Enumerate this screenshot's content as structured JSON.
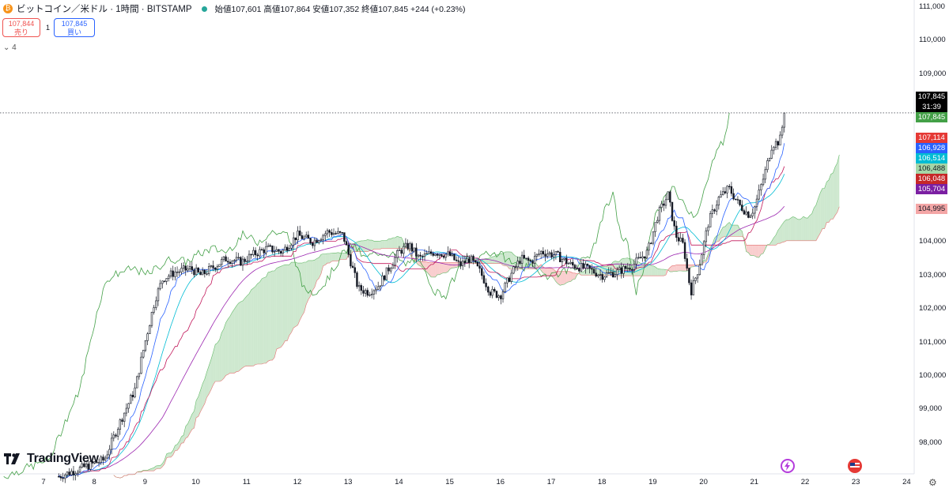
{
  "header": {
    "coin_glyph": "₿",
    "symbol": "ビットコイン／米ドル · 1時間 · BITSTAMP",
    "ohlc": "始値107,601 高値107,864 安値107,352 終値107,845 +244 (+0.23%)",
    "status_color": "#26a69a"
  },
  "trade": {
    "sell_price": "107,844",
    "sell_label": "売り",
    "quantity": "1",
    "buy_price": "107,845",
    "buy_label": "買い"
  },
  "indicators_toggle": "4",
  "brand": "TradingView",
  "colors": {
    "up": "#131722",
    "down": "#131722",
    "kijun": "#c2185b",
    "tenkan": "#2962ff",
    "chikou": "#43a047",
    "cloud_bull": "#a5d6a7",
    "cloud_bear": "#f4a6a6"
  },
  "chart_data": {
    "type": "candlestick",
    "title": "ビットコイン／米ドル · 1時間 · BITSTAMP",
    "x_ticks": [
      "7",
      "8",
      "9",
      "10",
      "11",
      "12",
      "13",
      "14",
      "15",
      "16",
      "17",
      "18",
      "19",
      "20",
      "21",
      "22",
      "23",
      "24"
    ],
    "y_ticks": [
      "111,000",
      "110,000",
      "109,000",
      "104,000",
      "103,000",
      "102,000",
      "101,000",
      "100,000",
      "99,000",
      "98,000"
    ],
    "ylim": [
      97300,
      111250
    ],
    "last_price": 107845,
    "countdown": "31:39",
    "price_tags": [
      {
        "label": "107,845",
        "value": 107845,
        "color": "#000000"
      },
      {
        "label": "107,845",
        "value": 107845,
        "color": "#43a047"
      },
      {
        "label": "107,114",
        "value": 107114,
        "color": "#e53935"
      },
      {
        "label": "106,928",
        "value": 106928,
        "color": "#2962ff"
      },
      {
        "label": "106,514",
        "value": 106514,
        "color": "#00bcd4"
      },
      {
        "label": "106,488",
        "value": 106488,
        "color": "#a5d6a7"
      },
      {
        "label": "106,048",
        "value": 106048,
        "color": "#c62828"
      },
      {
        "label": "105,704",
        "value": 105704,
        "color": "#7b1fa2"
      },
      {
        "label": "104,995",
        "value": 104995,
        "color": "#f4a6a6"
      }
    ],
    "closes_approx": [
      [
        7.3,
        97000
      ],
      [
        8.2,
        97500
      ],
      [
        8.5,
        98600
      ],
      [
        8.8,
        99600
      ],
      [
        9.0,
        101000
      ],
      [
        9.2,
        102300
      ],
      [
        9.35,
        102900
      ],
      [
        9.6,
        103100
      ],
      [
        9.9,
        103200
      ],
      [
        10.1,
        103000
      ],
      [
        10.3,
        103200
      ],
      [
        10.6,
        103500
      ],
      [
        10.9,
        103400
      ],
      [
        11.1,
        103600
      ],
      [
        11.4,
        103800
      ],
      [
        11.7,
        103700
      ],
      [
        12.0,
        104200
      ],
      [
        12.3,
        104000
      ],
      [
        12.6,
        104300
      ],
      [
        12.9,
        104200
      ],
      [
        13.05,
        103400
      ],
      [
        13.2,
        102600
      ],
      [
        13.4,
        102500
      ],
      [
        13.6,
        102700
      ],
      [
        13.8,
        103200
      ],
      [
        14.0,
        103700
      ],
      [
        14.2,
        103900
      ],
      [
        14.4,
        103500
      ],
      [
        14.7,
        103700
      ],
      [
        15.0,
        103600
      ],
      [
        15.2,
        103300
      ],
      [
        15.4,
        103500
      ],
      [
        15.6,
        103100
      ],
      [
        15.8,
        102500
      ],
      [
        16.0,
        102400
      ],
      [
        16.2,
        103000
      ],
      [
        16.4,
        103500
      ],
      [
        16.6,
        103400
      ],
      [
        16.8,
        103700
      ],
      [
        17.1,
        103600
      ],
      [
        17.4,
        103300
      ],
      [
        17.7,
        103200
      ],
      [
        18.0,
        103000
      ],
      [
        18.3,
        103100
      ],
      [
        18.6,
        103300
      ],
      [
        18.9,
        103700
      ],
      [
        19.1,
        104800
      ],
      [
        19.3,
        105400
      ],
      [
        19.45,
        104200
      ],
      [
        19.6,
        103900
      ],
      [
        19.75,
        102500
      ],
      [
        19.9,
        103200
      ],
      [
        20.1,
        104600
      ],
      [
        20.3,
        105300
      ],
      [
        20.5,
        105600
      ],
      [
        20.7,
        105100
      ],
      [
        20.9,
        104800
      ],
      [
        21.0,
        105000
      ],
      [
        21.2,
        106000
      ],
      [
        21.35,
        106900
      ],
      [
        21.5,
        107000
      ],
      [
        21.6,
        107845
      ]
    ]
  }
}
